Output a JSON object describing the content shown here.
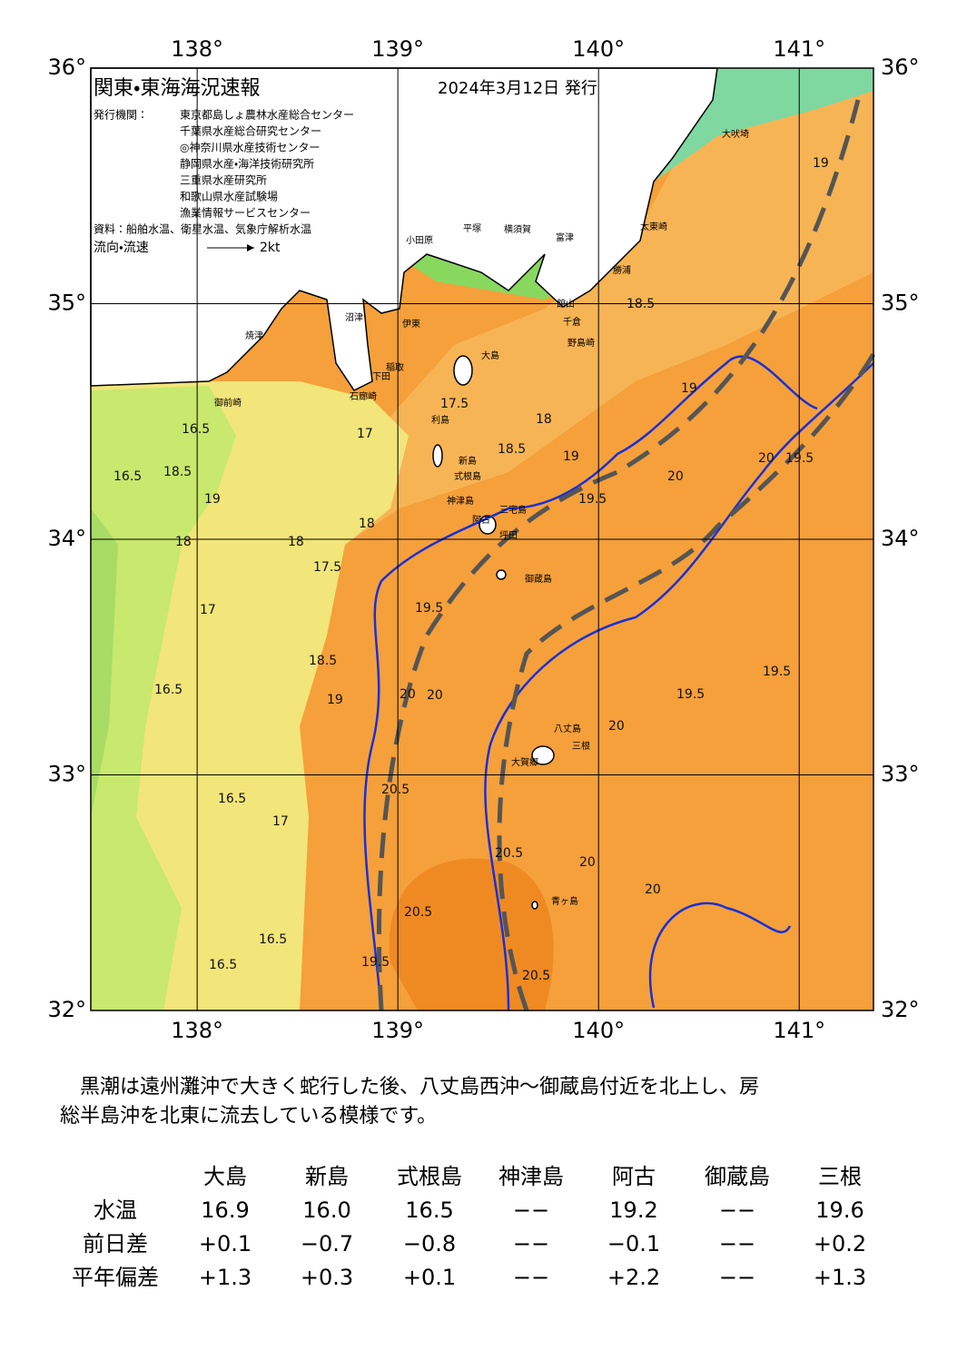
{
  "header": {
    "title": "関東・東海海況速報",
    "date": "2024年3月12日 発行",
    "publisher_label": "発行機関：",
    "publishers": [
      "東京都島しょ農林水産総合センター",
      "千葉県水産総合研究センター",
      "◎神奈川県水産技術センター",
      "静岡県水産・海洋技術研究所",
      "三重県水産研究所",
      "和歌山県水産試験場",
      "漁業情報サービスセンター"
    ],
    "source": "資料：船舶水温、衛星水温、気象庁解析水温",
    "flow_legend": "流向・流速",
    "flow_scale": "2kt"
  },
  "map": {
    "lon_range": [
      137.47,
      141.37
    ],
    "lat_range": [
      32,
      36
    ],
    "lon_ticks": [
      {
        "value": 138,
        "label": "138°"
      },
      {
        "value": 139,
        "label": "139°"
      },
      {
        "value": 140,
        "label": "140°"
      },
      {
        "value": 141,
        "label": "141°"
      }
    ],
    "lat_ticks": [
      {
        "value": 36,
        "label": "36°"
      },
      {
        "value": 35,
        "label": "35°"
      },
      {
        "value": 34,
        "label": "34°"
      },
      {
        "value": 33,
        "label": "33°"
      },
      {
        "value": 32,
        "label": "32°"
      }
    ],
    "places": [
      "大島",
      "新島",
      "式根島",
      "神津島",
      "三宅島",
      "御蔵島",
      "八丈島",
      "青ヶ島",
      "大吠埼",
      "太東崎",
      "勝浦",
      "野島崎",
      "千倉",
      "館山",
      "富津",
      "横須賀",
      "平塚",
      "小田原",
      "伊東",
      "稲取",
      "下田",
      "石廊崎",
      "御前崎",
      "焼津",
      "沼津",
      "利島",
      "阿古",
      "坪田",
      "三根",
      "大賀郷"
    ],
    "isotherms": [
      "16.5",
      "17",
      "17.5",
      "18",
      "18.5",
      "19",
      "19.5",
      "20",
      "20.5",
      "16.5",
      "18.5",
      "19",
      "18",
      "18",
      "18",
      "17.5",
      "17",
      "16.5",
      "16.5",
      "17",
      "18.5",
      "19",
      "19.5",
      "20",
      "20",
      "19.5",
      "20",
      "20.5",
      "20.5",
      "19.5",
      "20",
      "20",
      "19.5",
      "19.5",
      "20",
      "19",
      "18.5",
      "19",
      "20.5",
      "16.5",
      "16.5"
    ]
  },
  "description": [
    "　黒潮は遠州灘沖で大きく蛇行した後、八丈島西沖～御蔵島付近を北上し、房",
    "総半島沖を北東に流去している模様です。"
  ],
  "table": {
    "columns": [
      "大島",
      "新島",
      "式根島",
      "神津島",
      "阿古",
      "御蔵島",
      "三根"
    ],
    "rows": [
      {
        "label": "水温",
        "cells": [
          "16.9",
          "16.0",
          "16.5",
          "−−",
          "19.2",
          "−−",
          "19.6"
        ]
      },
      {
        "label": "前日差",
        "cells": [
          "+0.1",
          "−0.7",
          "−0.8",
          "−−",
          "−0.1",
          "−−",
          "+0.2"
        ]
      },
      {
        "label": "平年偏差",
        "cells": [
          "+1.3",
          "+0.3",
          "+0.1",
          "−−",
          "+2.2",
          "−−",
          "+1.3"
        ]
      }
    ]
  }
}
